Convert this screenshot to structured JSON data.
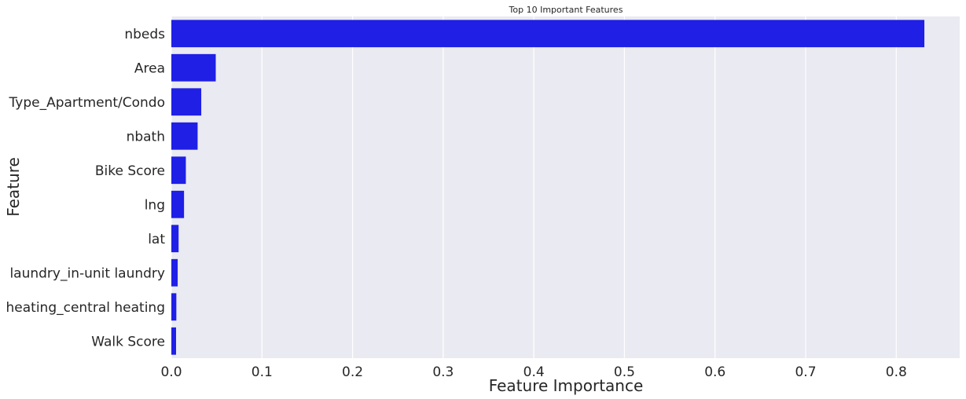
{
  "chart_data": {
    "type": "bar",
    "orientation": "horizontal",
    "title": "Top 10 Important Features",
    "xlabel": "Feature Importance",
    "ylabel": "Feature",
    "categories": [
      "nbeds",
      "Area",
      "Type_Apartment/Condo",
      "nbath",
      "Bike Score",
      "lng",
      "lat",
      "laundry_in-unit laundry",
      "heating_central heating",
      "Walk Score"
    ],
    "values": [
      0.831,
      0.049,
      0.033,
      0.029,
      0.016,
      0.014,
      0.008,
      0.007,
      0.0055,
      0.0052
    ],
    "xlim": [
      0.0,
      0.87
    ],
    "xticks": [
      "0.0",
      "0.1",
      "0.2",
      "0.3",
      "0.4",
      "0.5",
      "0.6",
      "0.7",
      "0.8"
    ],
    "grid": true,
    "legend": "none",
    "colors": {
      "bar": "#1f1fe6",
      "plot_background": "#eaeaf2",
      "grid": "#ffffff",
      "text": "#262626"
    }
  }
}
